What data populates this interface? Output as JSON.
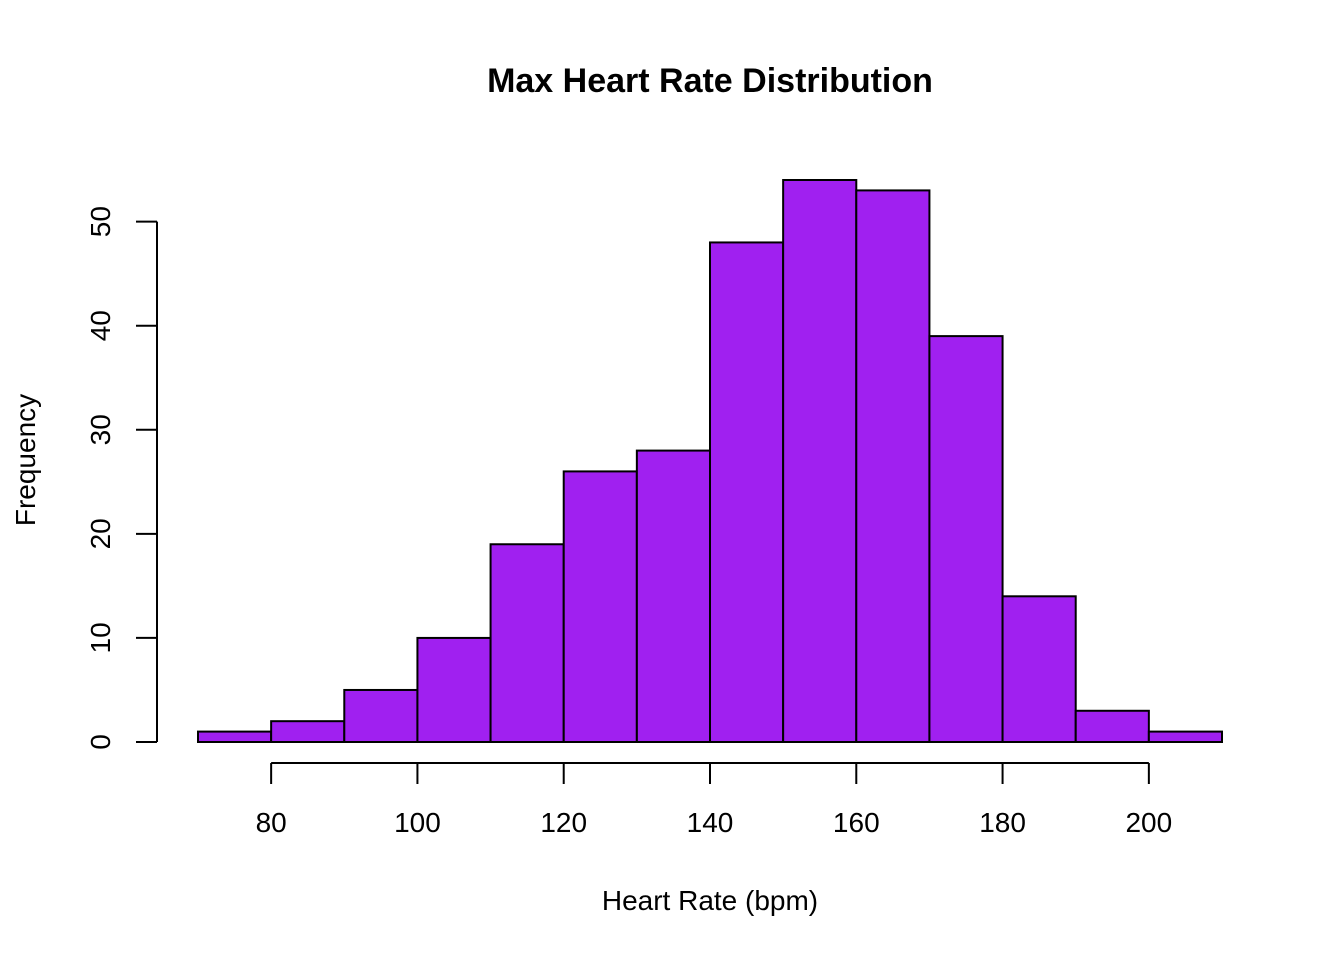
{
  "chart_data": {
    "type": "bar",
    "title": "Max Heart Rate Distribution",
    "xlabel": "Heart Rate (bpm)",
    "ylabel": "Frequency",
    "bin_edges": [
      70,
      80,
      90,
      100,
      110,
      120,
      130,
      140,
      150,
      160,
      170,
      180,
      190,
      200,
      210
    ],
    "values": [
      1,
      2,
      5,
      10,
      19,
      26,
      28,
      48,
      54,
      53,
      39,
      14,
      3,
      1
    ],
    "xlim": [
      70,
      210
    ],
    "ylim": [
      0,
      54
    ],
    "x_ticks": [
      80,
      100,
      120,
      140,
      160,
      180,
      200
    ],
    "y_ticks": [
      0,
      10,
      20,
      30,
      40,
      50
    ],
    "bar_color": "#A020F0",
    "grid": false,
    "legend": "none"
  }
}
